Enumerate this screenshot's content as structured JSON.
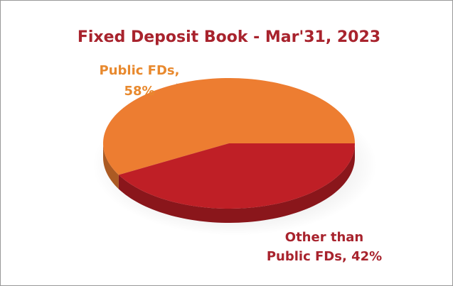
{
  "chart_data": {
    "type": "pie3d",
    "title": "Fixed Deposit Book - Mar'31, 2023",
    "values": [
      58,
      42
    ],
    "value_labels": [
      [
        "Public FDs,",
        "58%"
      ],
      [
        "Other than",
        "Public FDs, 42%"
      ]
    ],
    "colors": [
      "#ed7d31",
      "#bf1f26"
    ]
  }
}
